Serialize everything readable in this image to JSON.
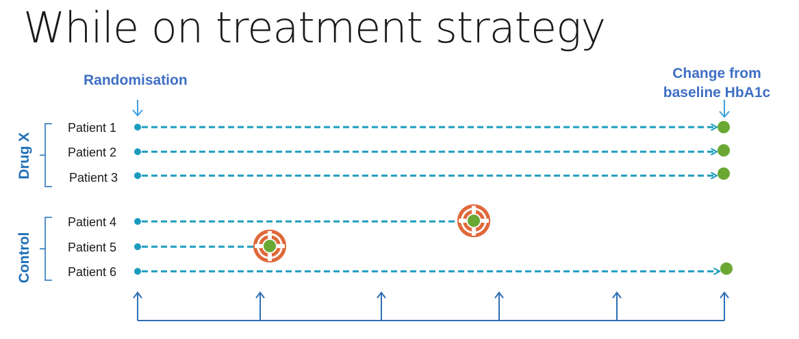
{
  "title": "While on treatment strategy",
  "randomisation_label": "Randomisation",
  "outcome_label": {
    "line1": "Change from",
    "line2": "baseline HbA1c"
  },
  "groups": [
    {
      "label": "Drug X"
    },
    {
      "label": "Control"
    }
  ],
  "patients": [
    {
      "label": "Patient 1",
      "group": "Drug X",
      "outcome": "baseline HbA1c reached",
      "rescue": false
    },
    {
      "label": "Patient 2",
      "group": "Drug X",
      "outcome": "baseline HbA1c reached",
      "rescue": false
    },
    {
      "label": "Patient 3",
      "group": "Drug X",
      "outcome": "baseline HbA1c reached",
      "rescue": false
    },
    {
      "label": "Patient 4",
      "group": "Control",
      "outcome": "rescue",
      "rescue": true
    },
    {
      "label": "Patient 5",
      "group": "Control",
      "outcome": "rescue",
      "rescue": true
    },
    {
      "label": "Patient 6",
      "group": "Control",
      "outcome": "baseline HbA1c reached",
      "rescue": false
    }
  ],
  "colors": {
    "line": "#1a9bbd",
    "arrow": "#3a9ee0",
    "outcome_dot": "#6aa834",
    "rescue_ring": "#e0683a",
    "group_label": "#1f6fb8",
    "header_label": "#3f6fc4"
  },
  "icons": {
    "rescue": "lifebuoy-icon",
    "visit": "up-arrow-icon",
    "randomisation": "down-arrow-icon"
  },
  "visit_count": 6
}
